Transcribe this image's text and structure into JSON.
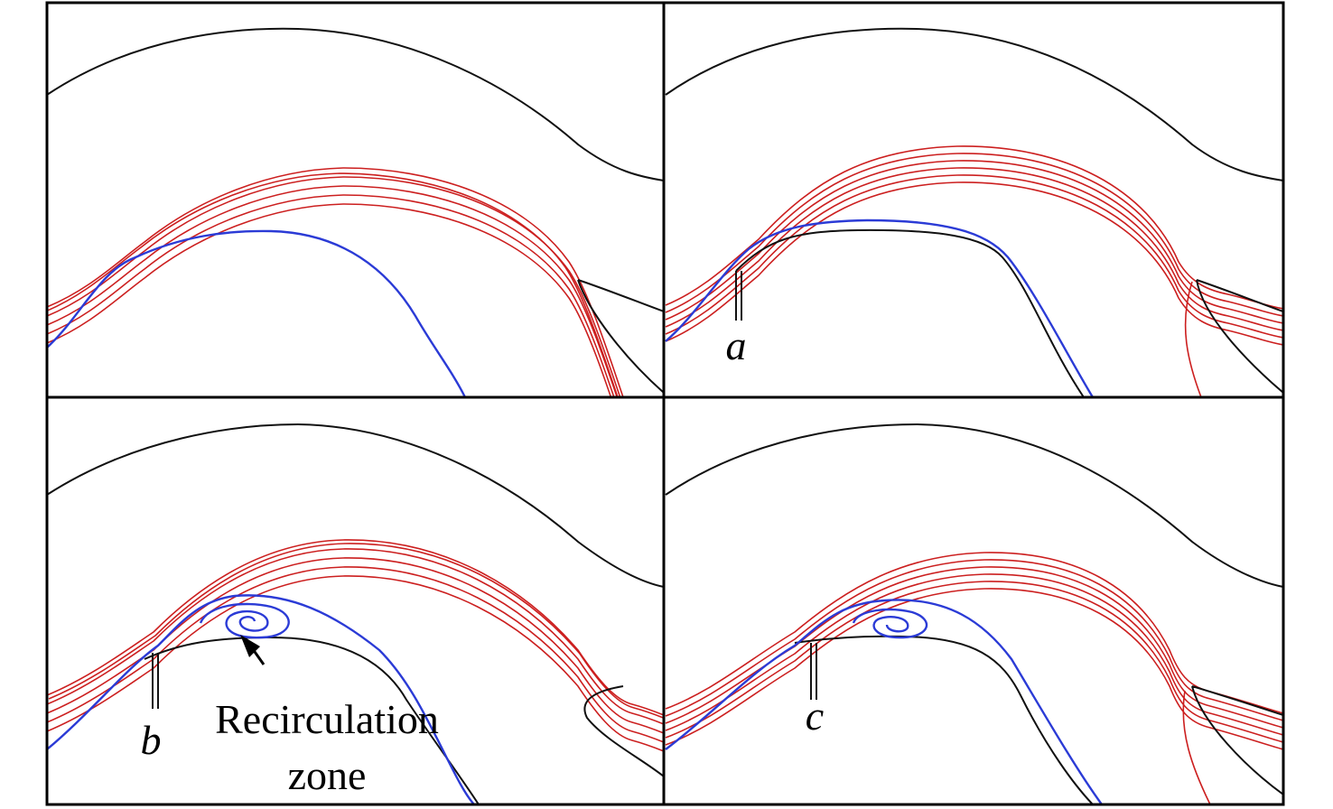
{
  "labels": {
    "a": "a",
    "b": "b",
    "c": "c"
  },
  "annotation": {
    "line1": "Recirculation",
    "line2": "zone"
  }
}
